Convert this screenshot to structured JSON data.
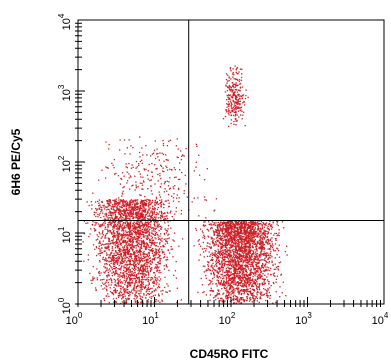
{
  "chart_data": {
    "type": "scatter",
    "xlabel": "CD45RO FITC",
    "ylabel": "6H6 PE/Cy5",
    "x_scale": "log",
    "y_scale": "log",
    "xlim": [
      1,
      10000
    ],
    "ylim": [
      1,
      10000
    ],
    "x_ticks": [
      {
        "base": "10",
        "exp": "0"
      },
      {
        "base": "10",
        "exp": "1"
      },
      {
        "base": "10",
        "exp": "2"
      },
      {
        "base": "10",
        "exp": "3"
      },
      {
        "base": "10",
        "exp": "4"
      }
    ],
    "y_ticks": [
      {
        "base": "10",
        "exp": "0"
      },
      {
        "base": "10",
        "exp": "1"
      },
      {
        "base": "10",
        "exp": "2"
      },
      {
        "base": "10",
        "exp": "3"
      },
      {
        "base": "10",
        "exp": "4"
      }
    ],
    "quadrant_gates": {
      "x": 28,
      "y": 15
    },
    "point_color": "#cc1f26",
    "populations": [
      {
        "x_range": [
          1,
          25
        ],
        "y_range": [
          1,
          30
        ],
        "density": "high"
      },
      {
        "x_range": [
          30,
          600
        ],
        "y_range": [
          1,
          15
        ],
        "density": "high"
      },
      {
        "x_range": [
          70,
          170
        ],
        "y_range": [
          300,
          2500
        ],
        "density": "low"
      },
      {
        "x_range": [
          1,
          80
        ],
        "y_range": [
          15,
          300
        ],
        "density": "low"
      }
    ],
    "grid": false
  }
}
